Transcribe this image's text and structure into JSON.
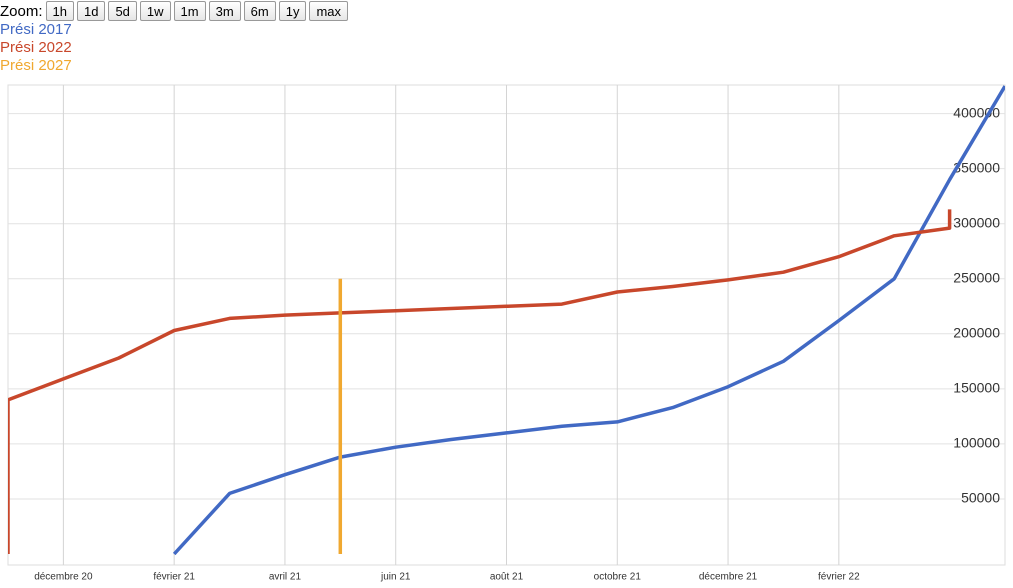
{
  "chart_data": {
    "type": "line",
    "zoom_label": "Zoom:",
    "zoom_buttons": [
      "1h",
      "1d",
      "5d",
      "1w",
      "1m",
      "3m",
      "6m",
      "1y",
      "max"
    ],
    "xlim": [
      "2020-11",
      "2022-05"
    ],
    "xticks": [
      {
        "value": "2020-12",
        "label": "décembre 20"
      },
      {
        "value": "2021-02",
        "label": "février 21"
      },
      {
        "value": "2021-04",
        "label": "avril 21"
      },
      {
        "value": "2021-06",
        "label": "juin 21"
      },
      {
        "value": "2021-08",
        "label": "août 21"
      },
      {
        "value": "2021-10",
        "label": "octobre 21"
      },
      {
        "value": "2021-12",
        "label": "décembre 21"
      },
      {
        "value": "2022-02",
        "label": "février 22"
      }
    ],
    "ylim": [
      -10000,
      426000
    ],
    "yticks": [
      50000,
      100000,
      150000,
      200000,
      250000,
      300000,
      350000,
      400000
    ],
    "grid": true,
    "series": [
      {
        "name": "Prési 2017",
        "color": "#4169c4",
        "x": [
          "2021-02",
          "2021-03",
          "2021-04",
          "2021-05",
          "2021-06",
          "2021-07",
          "2021-08",
          "2021-09",
          "2021-10",
          "2021-11",
          "2021-12",
          "2022-01",
          "2022-02",
          "2022-03",
          "2022-04",
          "2022-05"
        ],
        "values": [
          0,
          55000,
          72000,
          88000,
          97000,
          104000,
          110000,
          116000,
          120000,
          133000,
          152000,
          175000,
          212000,
          250000,
          340000,
          425000
        ]
      },
      {
        "name": "Prési 2022",
        "color": "#c8472b",
        "x": [
          "2020-11",
          "2020-11",
          "2020-12",
          "2021-01",
          "2021-02",
          "2021-03",
          "2021-04",
          "2021-05",
          "2021-06",
          "2021-07",
          "2021-08",
          "2021-09",
          "2021-10",
          "2021-11",
          "2021-12",
          "2022-01",
          "2022-02",
          "2022-03",
          "2022-04",
          "2022-04"
        ],
        "values": [
          0,
          140000,
          159000,
          178000,
          203000,
          214000,
          217000,
          219000,
          221000,
          223000,
          225000,
          227000,
          238000,
          243000,
          249000,
          256000,
          270000,
          289000,
          296000,
          313000
        ]
      },
      {
        "name": "Prési 2027",
        "color": "#f0a830",
        "x": [
          "2021-05",
          "2021-05",
          "2021-05"
        ],
        "values": [
          0,
          220000,
          250000
        ]
      }
    ]
  }
}
